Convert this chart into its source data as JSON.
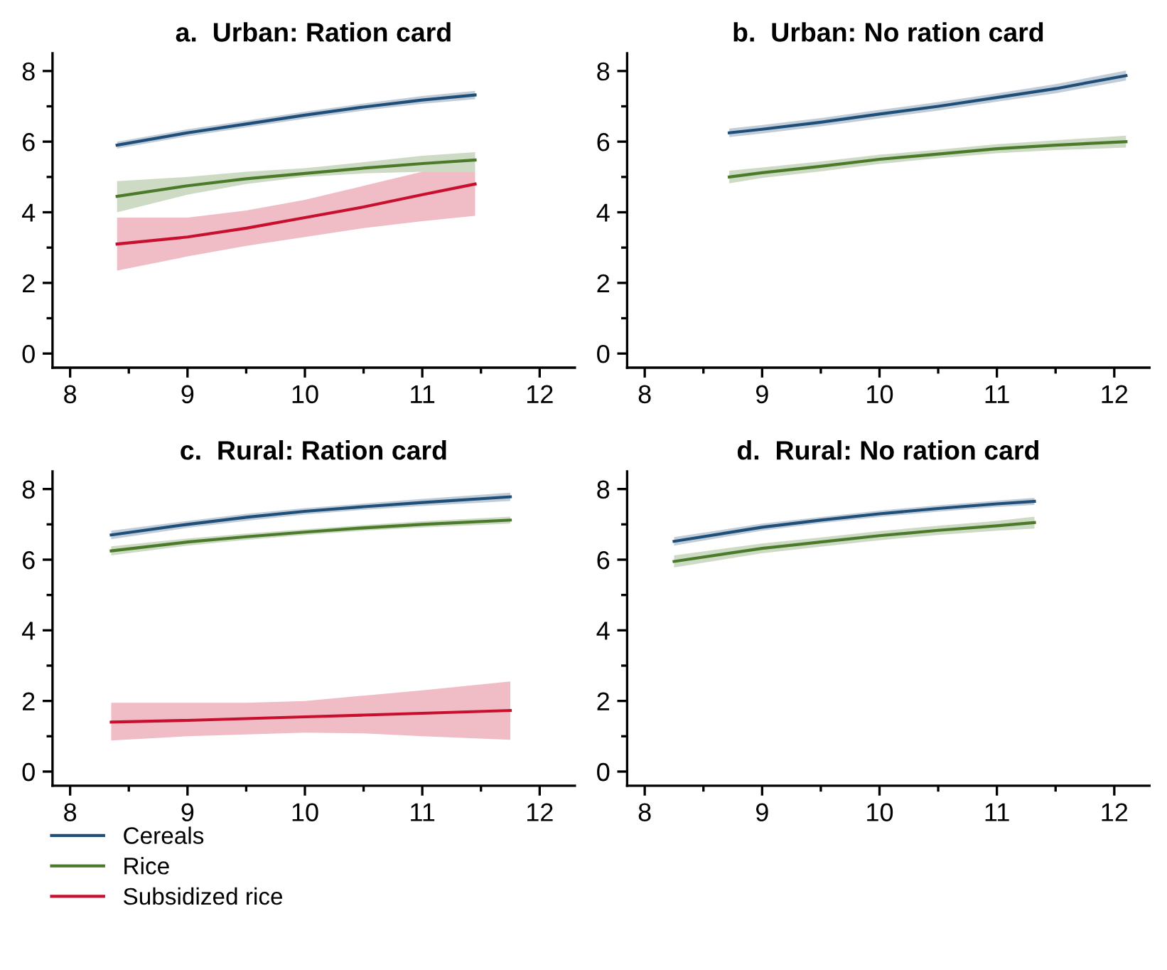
{
  "chart_data": [
    {
      "type": "line",
      "title": "a.  Urban: Ration card",
      "xlim": [
        7.85,
        12.3
      ],
      "ylim": [
        -0.4,
        8.5
      ],
      "xticks": [
        8,
        9,
        10,
        11,
        12
      ],
      "yticks": [
        0,
        2,
        4,
        6,
        8
      ],
      "legend": false,
      "series": [
        {
          "color": "#1f4e79",
          "x": [
            8.4,
            9,
            9.5,
            10,
            10.5,
            11,
            11.45
          ],
          "values": [
            5.9,
            6.25,
            6.5,
            6.75,
            6.98,
            7.18,
            7.32
          ],
          "lower": [
            5.8,
            6.15,
            6.4,
            6.65,
            6.88,
            7.07,
            7.2
          ],
          "upper": [
            6.0,
            6.35,
            6.6,
            6.85,
            7.08,
            7.29,
            7.44
          ]
        },
        {
          "color": "#4a7a2a",
          "x": [
            8.4,
            9,
            9.5,
            10,
            10.5,
            11,
            11.45
          ],
          "values": [
            4.45,
            4.75,
            4.95,
            5.1,
            5.25,
            5.38,
            5.48
          ],
          "lower": [
            4.0,
            4.5,
            4.8,
            5.0,
            5.1,
            5.15,
            5.15
          ],
          "upper": [
            4.88,
            5.0,
            5.15,
            5.25,
            5.42,
            5.6,
            5.7
          ]
        },
        {
          "color": "#c8102e",
          "x": [
            8.4,
            9,
            9.5,
            10,
            10.5,
            11,
            11.45
          ],
          "values": [
            3.1,
            3.3,
            3.55,
            3.85,
            4.15,
            4.5,
            4.8
          ],
          "lower": [
            2.35,
            2.75,
            3.05,
            3.3,
            3.55,
            3.75,
            3.9
          ],
          "upper": [
            3.85,
            3.85,
            4.05,
            4.35,
            4.75,
            5.15,
            5.15
          ]
        }
      ]
    },
    {
      "type": "line",
      "title": "b.  Urban: No ration card",
      "xlim": [
        7.85,
        12.3
      ],
      "ylim": [
        -0.4,
        8.5
      ],
      "xticks": [
        8,
        9,
        10,
        11,
        12
      ],
      "yticks": [
        0,
        2,
        4,
        6,
        8
      ],
      "legend": false,
      "series": [
        {
          "color": "#1f4e79",
          "x": [
            8.72,
            9,
            9.5,
            10,
            10.5,
            11,
            11.5,
            12.1
          ],
          "values": [
            6.25,
            6.35,
            6.55,
            6.78,
            7.0,
            7.25,
            7.5,
            7.87
          ],
          "lower": [
            6.13,
            6.23,
            6.43,
            6.66,
            6.88,
            7.13,
            7.37,
            7.73
          ],
          "upper": [
            6.37,
            6.47,
            6.67,
            6.9,
            7.12,
            7.37,
            7.63,
            8.01
          ]
        },
        {
          "color": "#4a7a2a",
          "x": [
            8.72,
            9,
            9.5,
            10,
            10.5,
            11,
            11.5,
            12.1
          ],
          "values": [
            5.0,
            5.12,
            5.3,
            5.5,
            5.65,
            5.8,
            5.9,
            6.0
          ],
          "lower": [
            4.82,
            4.97,
            5.16,
            5.37,
            5.53,
            5.67,
            5.76,
            5.83
          ],
          "upper": [
            5.18,
            5.27,
            5.44,
            5.63,
            5.77,
            5.93,
            6.04,
            6.17
          ]
        }
      ]
    },
    {
      "type": "line",
      "title": "c.  Rural: Ration card",
      "xlim": [
        7.85,
        12.3
      ],
      "ylim": [
        -0.4,
        8.5
      ],
      "xticks": [
        8,
        9,
        10,
        11,
        12
      ],
      "yticks": [
        0,
        2,
        4,
        6,
        8
      ],
      "legend": "bottom",
      "series": [
        {
          "name": "Cereals",
          "color": "#1f4e79",
          "x": [
            8.35,
            9,
            9.5,
            10,
            10.5,
            11,
            11.75
          ],
          "values": [
            6.7,
            7.0,
            7.2,
            7.37,
            7.5,
            7.62,
            7.78
          ],
          "lower": [
            6.58,
            6.9,
            7.1,
            7.28,
            7.41,
            7.52,
            7.66
          ],
          "upper": [
            6.82,
            7.1,
            7.3,
            7.46,
            7.59,
            7.72,
            7.9
          ]
        },
        {
          "name": "Rice",
          "color": "#4a7a2a",
          "x": [
            8.35,
            9,
            9.5,
            10,
            10.5,
            11,
            11.75
          ],
          "values": [
            6.25,
            6.5,
            6.65,
            6.78,
            6.9,
            7.0,
            7.12
          ],
          "lower": [
            6.12,
            6.4,
            6.56,
            6.7,
            6.82,
            6.91,
            7.02
          ],
          "upper": [
            6.38,
            6.6,
            6.74,
            6.86,
            6.98,
            7.09,
            7.22
          ]
        },
        {
          "name": "Subsidized rice",
          "color": "#c8102e",
          "x": [
            8.35,
            9,
            9.5,
            10,
            10.5,
            11,
            11.75
          ],
          "values": [
            1.4,
            1.45,
            1.5,
            1.55,
            1.6,
            1.65,
            1.73
          ],
          "lower": [
            0.88,
            1.0,
            1.05,
            1.1,
            1.08,
            1.0,
            0.9
          ],
          "upper": [
            1.95,
            1.95,
            1.95,
            2.0,
            2.15,
            2.3,
            2.55
          ]
        }
      ]
    },
    {
      "type": "line",
      "title": "d.  Rural: No ration card",
      "xlim": [
        7.85,
        12.3
      ],
      "ylim": [
        -0.4,
        8.5
      ],
      "xticks": [
        8,
        9,
        10,
        11,
        12
      ],
      "yticks": [
        0,
        2,
        4,
        6,
        8
      ],
      "legend": false,
      "series": [
        {
          "color": "#1f4e79",
          "x": [
            8.25,
            9,
            9.5,
            10,
            10.5,
            11,
            11.32
          ],
          "values": [
            6.52,
            6.92,
            7.12,
            7.3,
            7.45,
            7.58,
            7.65
          ],
          "lower": [
            6.4,
            6.82,
            7.03,
            7.21,
            7.36,
            7.49,
            7.55
          ],
          "upper": [
            6.64,
            7.02,
            7.21,
            7.39,
            7.54,
            7.67,
            7.75
          ]
        },
        {
          "color": "#4a7a2a",
          "x": [
            8.25,
            9,
            9.5,
            10,
            10.5,
            11,
            11.32
          ],
          "values": [
            5.95,
            6.32,
            6.5,
            6.68,
            6.83,
            6.96,
            7.05
          ],
          "lower": [
            5.78,
            6.18,
            6.37,
            6.55,
            6.7,
            6.82,
            6.88
          ],
          "upper": [
            6.12,
            6.46,
            6.63,
            6.81,
            6.96,
            7.1,
            7.22
          ]
        }
      ]
    }
  ]
}
